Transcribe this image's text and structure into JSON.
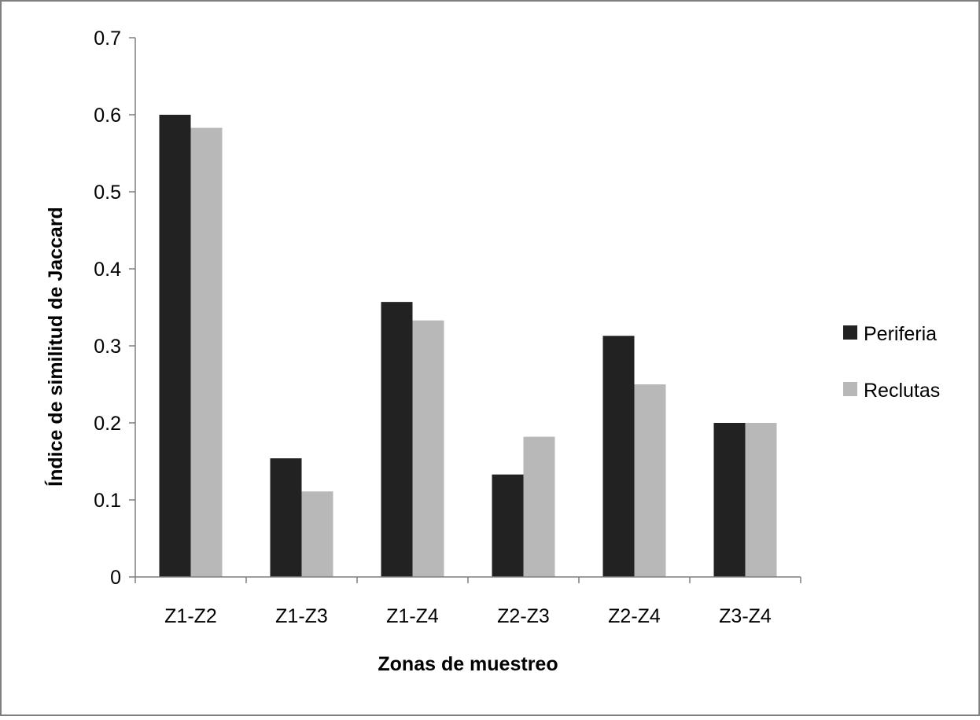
{
  "chart_data": {
    "type": "bar",
    "title": "",
    "xlabel": "Zonas de muestreo",
    "ylabel": "Índice de similitud de Jaccard",
    "categories": [
      "Z1-Z2",
      "Z1-Z3",
      "Z1-Z4",
      "Z2-Z3",
      "Z2-Z4",
      "Z3-Z4"
    ],
    "series": [
      {
        "name": "Periferia",
        "color": "#222222",
        "values": [
          0.6,
          0.154,
          0.357,
          0.133,
          0.313,
          0.2
        ]
      },
      {
        "name": "Reclutas",
        "color": "#b8b8b8",
        "values": [
          0.583,
          0.111,
          0.333,
          0.182,
          0.25,
          0.2
        ]
      }
    ],
    "ylim": [
      0,
      0.7
    ],
    "yticks": [
      "0",
      "0.1",
      "0.2",
      "0.3",
      "0.4",
      "0.5",
      "0.6",
      "0.7"
    ],
    "grid": false,
    "legend_position": "right"
  }
}
